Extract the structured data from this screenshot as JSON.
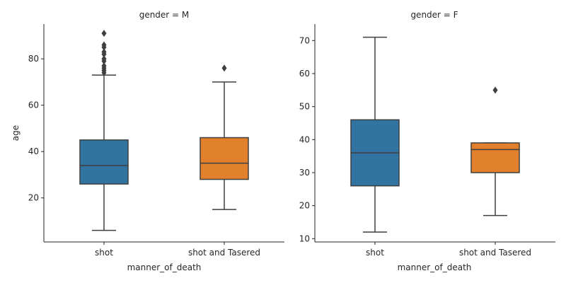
{
  "chart_data": [
    {
      "type": "box",
      "title": "gender = M",
      "xlabel": "manner_of_death",
      "ylabel": "age",
      "categories": [
        "shot",
        "shot and Tasered"
      ],
      "ylim": [
        1,
        95
      ],
      "yticks": [
        20,
        40,
        60,
        80
      ],
      "boxes": [
        {
          "category": "shot",
          "min": 6,
          "q1": 26,
          "median": 34,
          "q3": 45,
          "max": 73,
          "color": "#3274a1",
          "outliers": [
            74,
            75,
            76,
            77,
            79,
            80,
            82,
            83,
            85,
            86,
            91
          ]
        },
        {
          "category": "shot and Tasered",
          "min": 15,
          "q1": 28,
          "median": 35,
          "q3": 46,
          "max": 70,
          "color": "#e1812c",
          "outliers": [
            76
          ]
        }
      ]
    },
    {
      "type": "box",
      "title": "gender = F",
      "xlabel": "manner_of_death",
      "ylabel": "",
      "categories": [
        "shot",
        "shot and Tasered"
      ],
      "ylim": [
        9,
        75
      ],
      "yticks": [
        10,
        20,
        30,
        40,
        50,
        60,
        70
      ],
      "boxes": [
        {
          "category": "shot",
          "min": 12,
          "q1": 26,
          "median": 36,
          "q3": 46,
          "max": 71,
          "color": "#3274a1",
          "outliers": []
        },
        {
          "category": "shot and Tasered",
          "min": 17,
          "q1": 30,
          "median": 37,
          "q3": 39,
          "max": 39,
          "color": "#e1812c",
          "outliers": [
            55
          ]
        }
      ]
    }
  ]
}
